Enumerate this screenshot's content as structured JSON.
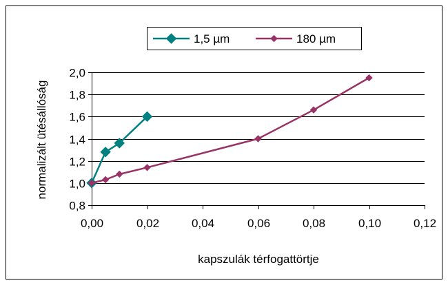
{
  "colors": {
    "series_1": "#008080",
    "series_2": "#993366",
    "grid": "#000000",
    "plot_background": "#ffffff",
    "frame": "#000000"
  },
  "chart_data": {
    "type": "line",
    "title": "",
    "xlabel": "kapszulák térfogattörtje",
    "ylabel": "normalizált ütésállóság",
    "xlim": [
      0,
      0.12
    ],
    "ylim": [
      0.8,
      2.0
    ],
    "x_ticks": [
      0,
      0.02,
      0.04,
      0.06,
      0.08,
      0.1,
      0.12
    ],
    "x_tick_labels": [
      "0,00",
      "0,02",
      "0,04",
      "0,06",
      "0,08",
      "0,10",
      "0,12"
    ],
    "y_ticks": [
      0.8,
      1.0,
      1.2,
      1.4,
      1.6,
      1.8,
      2.0
    ],
    "y_tick_labels": [
      "0,8",
      "1,0",
      "1,2",
      "1,4",
      "1,6",
      "1,8",
      "2,0"
    ],
    "grid": "horizontal",
    "legend_position": "top-right",
    "series": [
      {
        "name": "1,5 µm",
        "marker": "diamond",
        "color": "#008080",
        "points": [
          [
            0,
            1.0
          ],
          [
            0.005,
            1.28
          ],
          [
            0.01,
            1.36
          ],
          [
            0.02,
            1.6
          ]
        ]
      },
      {
        "name": "180 µm",
        "marker": "small-diamond",
        "color": "#993366",
        "points": [
          [
            0,
            1.0
          ],
          [
            0.005,
            1.03
          ],
          [
            0.01,
            1.08
          ],
          [
            0.02,
            1.14
          ],
          [
            0.06,
            1.4
          ],
          [
            0.08,
            1.66
          ],
          [
            0.1,
            1.95
          ]
        ]
      }
    ]
  }
}
